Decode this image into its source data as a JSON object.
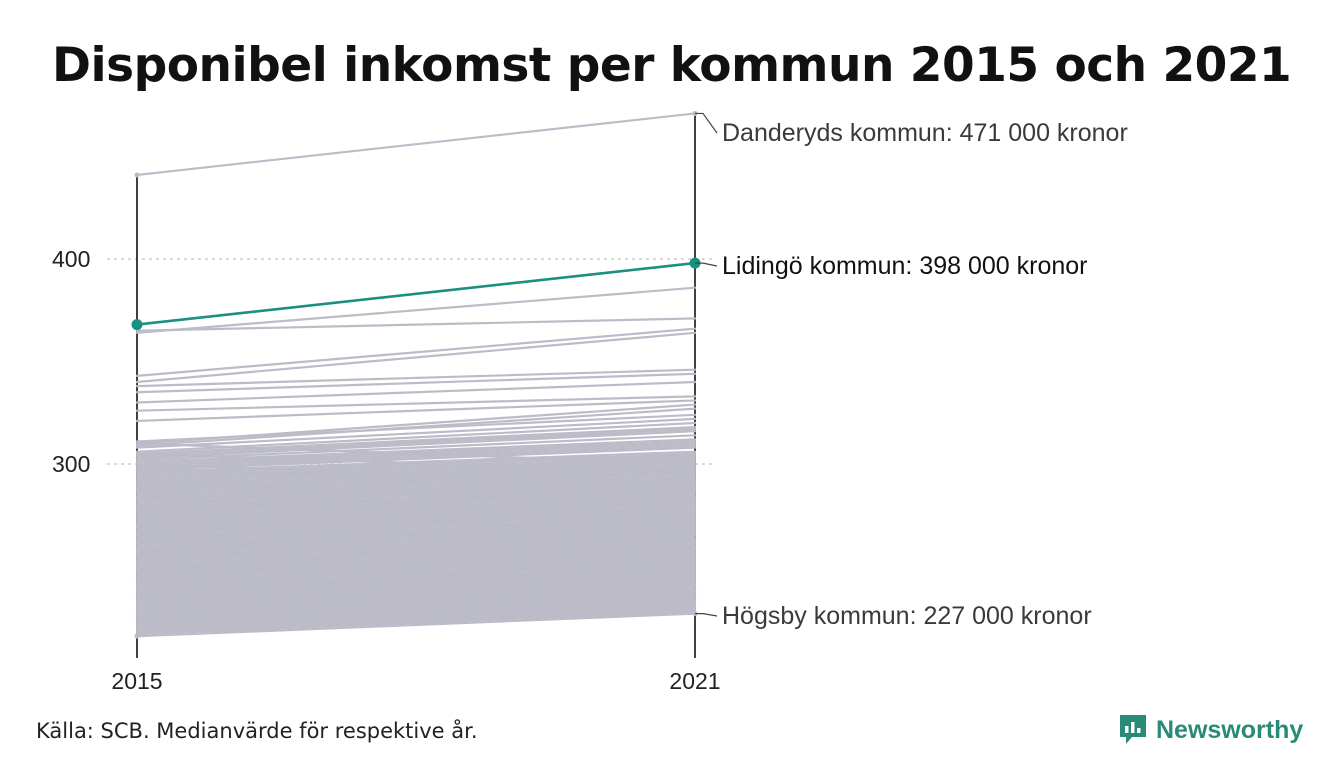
{
  "chart_data": {
    "type": "line",
    "title": "Disponibel inkomst per kommun 2015 och 2021",
    "x": [
      "2015",
      "2021"
    ],
    "ylim": [
      210,
      475
    ],
    "yticks": [
      300,
      400
    ],
    "grid": "horizontal dotted at ticks",
    "unit": "tusen kronor",
    "highlight": {
      "name": "Lidingö kommun",
      "values": [
        368,
        398
      ],
      "label": "Lidingö kommun: 398 000 kronor",
      "color": "#1a9080"
    },
    "annotations": [
      {
        "name": "Danderyds kommun",
        "values": [
          441,
          471
        ],
        "label": "Danderyds kommun: 471 000 kronor"
      },
      {
        "name": "Högsby kommun",
        "values": [
          216,
          227
        ],
        "label": "Högsby kommun: 227 000 kronor"
      }
    ],
    "series_values": [
      [
        364,
        386
      ],
      [
        365,
        371
      ],
      [
        343,
        366
      ],
      [
        340,
        364
      ],
      [
        338,
        346
      ],
      [
        335,
        344
      ],
      [
        330,
        340
      ],
      [
        326,
        333
      ],
      [
        321,
        331
      ],
      [
        311,
        324
      ],
      [
        310,
        329
      ],
      [
        309,
        327
      ],
      [
        308,
        322
      ],
      [
        306,
        320
      ],
      [
        305,
        318
      ],
      [
        304,
        317
      ],
      [
        303,
        316
      ],
      [
        302,
        314
      ],
      [
        301,
        312
      ],
      [
        300,
        311
      ],
      [
        299,
        310
      ],
      [
        298,
        309
      ],
      [
        297,
        308
      ],
      [
        296,
        306
      ],
      [
        295,
        305
      ],
      [
        294,
        304
      ],
      [
        293,
        303
      ],
      [
        292,
        302
      ],
      [
        291,
        301
      ],
      [
        290,
        300
      ],
      [
        289,
        299
      ],
      [
        288,
        298
      ],
      [
        287,
        297
      ],
      [
        286,
        296
      ],
      [
        285,
        295
      ],
      [
        284,
        294
      ],
      [
        283,
        293
      ],
      [
        282,
        292
      ],
      [
        281,
        291
      ],
      [
        280,
        290
      ],
      [
        279,
        289
      ],
      [
        278,
        288
      ],
      [
        277,
        287
      ],
      [
        276,
        286
      ],
      [
        275,
        285
      ],
      [
        274,
        284
      ],
      [
        273,
        283
      ],
      [
        272,
        282
      ],
      [
        271,
        281
      ],
      [
        270,
        280
      ],
      [
        269,
        279
      ],
      [
        268,
        278
      ],
      [
        267,
        277
      ],
      [
        266,
        276
      ],
      [
        265,
        275
      ],
      [
        264,
        274
      ],
      [
        263,
        273
      ],
      [
        262,
        272
      ],
      [
        261,
        271
      ],
      [
        260,
        270
      ],
      [
        259,
        269
      ],
      [
        258,
        268
      ],
      [
        257,
        267
      ],
      [
        256,
        266
      ],
      [
        255,
        265
      ],
      [
        254,
        264
      ],
      [
        253,
        263
      ],
      [
        252,
        262
      ],
      [
        251,
        261
      ],
      [
        250,
        260
      ],
      [
        249,
        259
      ],
      [
        248,
        258
      ],
      [
        247,
        257
      ],
      [
        246,
        256
      ],
      [
        245,
        255
      ],
      [
        244,
        254
      ],
      [
        243,
        253
      ],
      [
        242,
        252
      ],
      [
        241,
        251
      ],
      [
        240,
        250
      ],
      [
        239,
        249
      ],
      [
        238,
        248
      ],
      [
        237,
        247
      ],
      [
        236,
        246
      ],
      [
        235,
        245
      ],
      [
        234,
        244
      ],
      [
        233,
        243
      ],
      [
        232,
        242
      ],
      [
        231,
        241
      ],
      [
        230,
        240
      ],
      [
        229,
        239
      ],
      [
        228,
        238
      ],
      [
        227,
        237
      ],
      [
        226,
        236
      ],
      [
        225,
        235
      ],
      [
        224,
        234
      ],
      [
        223,
        233
      ],
      [
        222,
        232
      ],
      [
        221,
        231
      ],
      [
        220,
        230
      ],
      [
        219,
        229
      ],
      [
        218,
        228
      ],
      [
        217,
        228
      ],
      [
        280,
        276
      ],
      [
        270,
        262
      ],
      [
        262,
        250
      ],
      [
        255,
        240
      ],
      [
        248,
        234
      ],
      [
        242,
        229
      ],
      [
        236,
        230
      ],
      [
        230,
        231
      ],
      [
        226,
        232
      ],
      [
        222,
        229
      ],
      [
        300,
        290
      ],
      [
        290,
        280
      ],
      [
        284,
        268
      ],
      [
        276,
        256
      ],
      [
        266,
        248
      ],
      [
        258,
        244
      ],
      [
        250,
        238
      ],
      [
        244,
        236
      ],
      [
        238,
        233
      ],
      [
        233,
        232
      ],
      [
        229,
        230
      ],
      [
        225,
        229
      ],
      [
        221,
        228
      ],
      [
        218,
        229
      ],
      [
        310,
        300
      ],
      [
        305,
        296
      ],
      [
        298,
        288
      ],
      [
        292,
        282
      ],
      [
        286,
        275
      ],
      [
        278,
        266
      ],
      [
        271,
        259
      ],
      [
        264,
        252
      ],
      [
        257,
        246
      ],
      [
        251,
        241
      ],
      [
        245,
        237
      ],
      [
        239,
        235
      ],
      [
        234,
        234
      ],
      [
        231,
        233
      ],
      [
        227,
        231
      ],
      [
        224,
        230
      ],
      [
        220,
        229
      ],
      [
        271,
        290
      ],
      [
        266,
        284
      ],
      [
        262,
        279
      ],
      [
        257,
        274
      ],
      [
        253,
        270
      ],
      [
        249,
        266
      ],
      [
        245,
        262
      ],
      [
        241,
        258
      ],
      [
        237,
        254
      ],
      [
        233,
        250
      ],
      [
        229,
        246
      ],
      [
        226,
        242
      ],
      [
        223,
        238
      ],
      [
        220,
        236
      ],
      [
        278,
        305
      ],
      [
        274,
        299
      ],
      [
        269,
        294
      ],
      [
        265,
        288
      ],
      [
        261,
        283
      ],
      [
        256,
        277
      ],
      [
        252,
        272
      ],
      [
        248,
        268
      ],
      [
        244,
        263
      ],
      [
        240,
        259
      ],
      [
        236,
        255
      ],
      [
        232,
        251
      ],
      [
        228,
        247
      ],
      [
        225,
        244
      ],
      [
        222,
        241
      ],
      [
        219,
        238
      ]
    ]
  },
  "axis": {
    "y_labels": [
      "400",
      "300"
    ],
    "x_labels": [
      "2015",
      "2021"
    ]
  },
  "footer": {
    "source": "Källa: SCB. Medianvärde för respektive år.",
    "brand": "Newsworthy",
    "brand_color": "#2a8a78"
  }
}
